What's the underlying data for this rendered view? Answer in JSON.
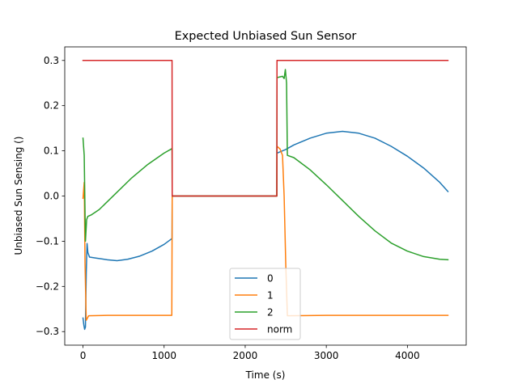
{
  "chart_data": {
    "type": "line",
    "title": "Expected Unbiased Sun Sensor",
    "xlabel": "Time (s)",
    "ylabel": "Unbiased Sun Sensing ()",
    "xlim": [
      -225,
      4725
    ],
    "ylim": [
      -0.33,
      0.33
    ],
    "xticks": [
      0,
      1000,
      2000,
      3000,
      4000
    ],
    "xtick_labels": [
      "0",
      "1000",
      "2000",
      "3000",
      "4000"
    ],
    "yticks": [
      -0.3,
      -0.2,
      -0.1,
      0.0,
      0.1,
      0.2,
      0.3
    ],
    "ytick_labels": [
      "−0.3",
      "−0.2",
      "−0.1",
      "0.0",
      "0.1",
      "0.2",
      "0.3"
    ],
    "grid": false,
    "legend_position": "lower-center",
    "series": [
      {
        "name": "0",
        "color": "#1f77b4",
        "points": [
          [
            0,
            -0.27
          ],
          [
            10,
            -0.285
          ],
          [
            20,
            -0.295
          ],
          [
            30,
            -0.29
          ],
          [
            40,
            -0.17
          ],
          [
            50,
            -0.105
          ],
          [
            60,
            -0.125
          ],
          [
            80,
            -0.135
          ],
          [
            150,
            -0.137
          ],
          [
            300,
            -0.141
          ],
          [
            420,
            -0.143
          ],
          [
            550,
            -0.14
          ],
          [
            700,
            -0.133
          ],
          [
            850,
            -0.122
          ],
          [
            1000,
            -0.107
          ],
          [
            1098,
            -0.094
          ],
          [
            1100,
            0.0
          ],
          [
            2390,
            0.0
          ],
          [
            2392,
            0.095
          ],
          [
            2500,
            0.103
          ],
          [
            2600,
            0.113
          ],
          [
            2800,
            0.128
          ],
          [
            3000,
            0.139
          ],
          [
            3200,
            0.143
          ],
          [
            3400,
            0.139
          ],
          [
            3600,
            0.128
          ],
          [
            3800,
            0.11
          ],
          [
            4000,
            0.088
          ],
          [
            4200,
            0.062
          ],
          [
            4400,
            0.03
          ],
          [
            4500,
            0.01
          ]
        ]
      },
      {
        "name": "1",
        "color": "#ff7f0e",
        "points": [
          [
            0,
            -0.005
          ],
          [
            15,
            0.03
          ],
          [
            25,
            -0.15
          ],
          [
            40,
            -0.275
          ],
          [
            55,
            -0.27
          ],
          [
            70,
            -0.265
          ],
          [
            300,
            -0.264
          ],
          [
            600,
            -0.264
          ],
          [
            900,
            -0.264
          ],
          [
            1095,
            -0.264
          ],
          [
            1100,
            0.0
          ],
          [
            2390,
            0.0
          ],
          [
            2392,
            0.11
          ],
          [
            2430,
            0.104
          ],
          [
            2460,
            0.09
          ],
          [
            2480,
            0.0
          ],
          [
            2500,
            -0.15
          ],
          [
            2520,
            -0.265
          ],
          [
            3000,
            -0.264
          ],
          [
            3500,
            -0.264
          ],
          [
            4000,
            -0.264
          ],
          [
            4500,
            -0.264
          ]
        ]
      },
      {
        "name": "2",
        "color": "#2ca02c",
        "points": [
          [
            0,
            0.128
          ],
          [
            15,
            0.09
          ],
          [
            30,
            -0.1
          ],
          [
            45,
            -0.052
          ],
          [
            60,
            -0.045
          ],
          [
            100,
            -0.042
          ],
          [
            200,
            -0.03
          ],
          [
            400,
            0.005
          ],
          [
            600,
            0.04
          ],
          [
            800,
            0.07
          ],
          [
            1000,
            0.095
          ],
          [
            1098,
            0.105
          ],
          [
            1100,
            0.0
          ],
          [
            2390,
            0.0
          ],
          [
            2392,
            0.262
          ],
          [
            2460,
            0.265
          ],
          [
            2480,
            0.26
          ],
          [
            2495,
            0.28
          ],
          [
            2510,
            0.25
          ],
          [
            2520,
            0.09
          ],
          [
            2600,
            0.085
          ],
          [
            2800,
            0.058
          ],
          [
            3000,
            0.025
          ],
          [
            3200,
            -0.01
          ],
          [
            3400,
            -0.045
          ],
          [
            3600,
            -0.077
          ],
          [
            3800,
            -0.104
          ],
          [
            4000,
            -0.122
          ],
          [
            4200,
            -0.134
          ],
          [
            4400,
            -0.14
          ],
          [
            4500,
            -0.141
          ]
        ]
      },
      {
        "name": "norm",
        "color": "#d62728",
        "points": [
          [
            0,
            0.3
          ],
          [
            1098,
            0.3
          ],
          [
            1100,
            0.0
          ],
          [
            2390,
            0.0
          ],
          [
            2392,
            0.3
          ],
          [
            4500,
            0.3
          ]
        ]
      }
    ]
  }
}
